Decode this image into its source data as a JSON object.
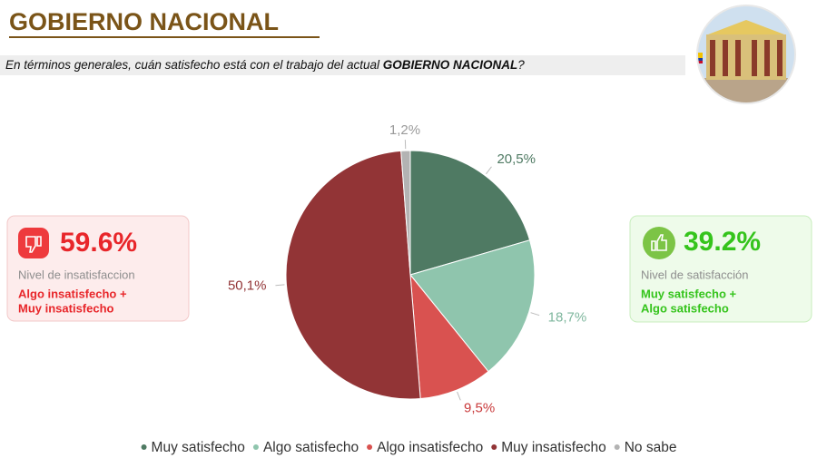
{
  "chart_data": {
    "type": "pie",
    "title": "GOBIERNO NACIONAL",
    "subtitle": [
      "En términos generales, cuán satisfecho está con el trabajo del actual ",
      "GOBIERNO NACIONAL",
      "?"
    ],
    "categories": [
      "Muy satisfecho",
      "Algo satisfecho",
      "Algo insatisfecho",
      "Muy insatisfecho",
      "No sabe"
    ],
    "values": [
      20.5,
      18.7,
      9.5,
      50.1,
      1.2
    ],
    "value_labels": [
      "20,5%",
      "18,7%",
      "9,5%",
      "50,1%",
      "1,2%"
    ],
    "colors": [
      "#4f7a63",
      "#8fc5ad",
      "#d95250",
      "#923436",
      "#b3b3b3"
    ],
    "label_colors": [
      "#4f7a63",
      "#7fb79e",
      "#c9393a",
      "#923436",
      "#9a9a9a"
    ],
    "annotations": [
      {
        "text": "59.6%",
        "label": "Nivel de insatisfaccion",
        "detail": [
          "Algo insatisfecho +",
          "Muy insatisfecho"
        ]
      },
      {
        "text": "39.2%",
        "label": "Nivel de satisfacción",
        "detail": [
          "Muy satisfecho +",
          "Algo satisfecho"
        ]
      }
    ]
  }
}
